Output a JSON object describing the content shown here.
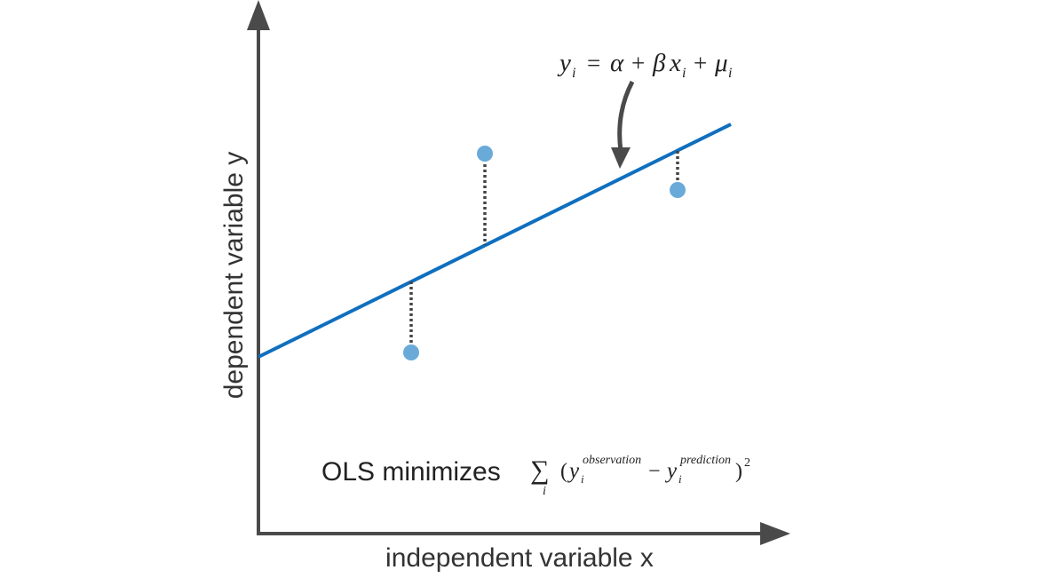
{
  "axes": {
    "x_label": "independent variable x",
    "y_label": "dependent variable y"
  },
  "equation": {
    "y": "y",
    "i1": "i",
    "eq": "=",
    "alpha": "α",
    "plus1": "+",
    "beta": "β",
    "x": "x",
    "i2": "i",
    "plus2": "+",
    "mu": "μ",
    "i3": "i"
  },
  "ols": {
    "text": "OLS minimizes",
    "sigma": "∑",
    "sigma_sub": "i",
    "open_paren": "(",
    "y_obs": "y",
    "obs_sub": "i",
    "obs_sup": "observation",
    "minus": "−",
    "y_pred": "y",
    "pred_sub": "i",
    "pred_sup": "prediction",
    "close_paren": ")",
    "power": "2"
  },
  "colors": {
    "axis": "#4a4a4a",
    "regression_line": "#0f6fbf",
    "points": "#6aaad9",
    "residuals": "#444444"
  }
}
